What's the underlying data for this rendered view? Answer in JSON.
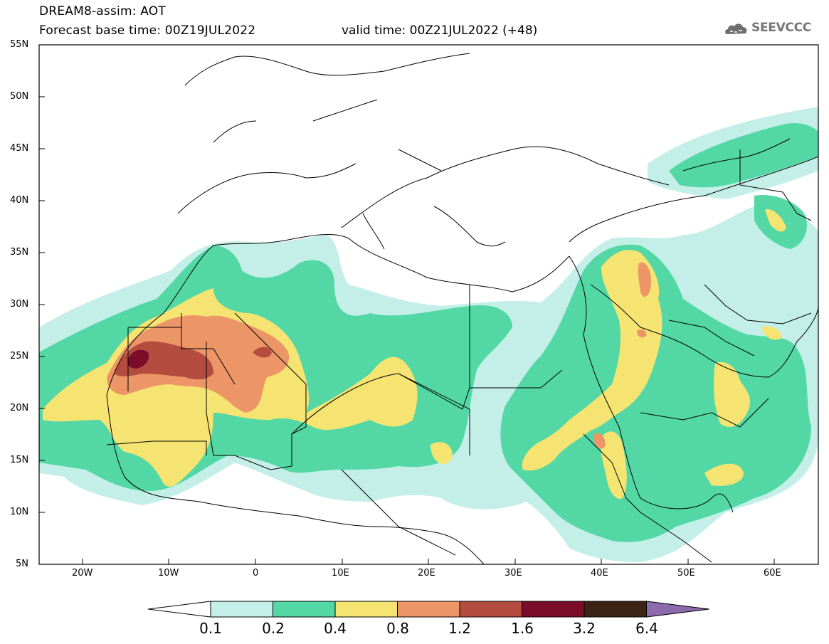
{
  "title": {
    "line1": "DREAM8-assim: AOT",
    "line2": "Forecast base time: 00Z19JUL2022",
    "valid": "valid time: 00Z21JUL2022 (+48)"
  },
  "logo": {
    "text": "SEEVCCC",
    "icon": "cloud-icon"
  },
  "axes": {
    "lat_labels": [
      "55N",
      "50N",
      "45N",
      "40N",
      "35N",
      "30N",
      "25N",
      "20N",
      "15N",
      "10N",
      "5N"
    ],
    "lon_labels": [
      "20W",
      "10W",
      "0",
      "10E",
      "20E",
      "30E",
      "40E",
      "50E",
      "60E"
    ],
    "lon_range": [
      -25,
      65
    ],
    "lat_range": [
      5,
      55
    ]
  },
  "colorbar": {
    "labels": [
      "0.1",
      "0.2",
      "0.4",
      "0.8",
      "1.2",
      "1.6",
      "3.2",
      "6.4"
    ],
    "colors": [
      "#ffffff",
      "#c4efe8",
      "#52d7a5",
      "#f5e472",
      "#ec9566",
      "#b44d3f",
      "#7b0d2a",
      "#3b2414",
      "#8c6aab"
    ]
  },
  "colors": {
    "c1": "#c4efe8",
    "c2": "#52d7a5",
    "c3": "#f5e472",
    "c4": "#ec9566",
    "c5": "#b44d3f",
    "c6": "#7b0d2a"
  }
}
